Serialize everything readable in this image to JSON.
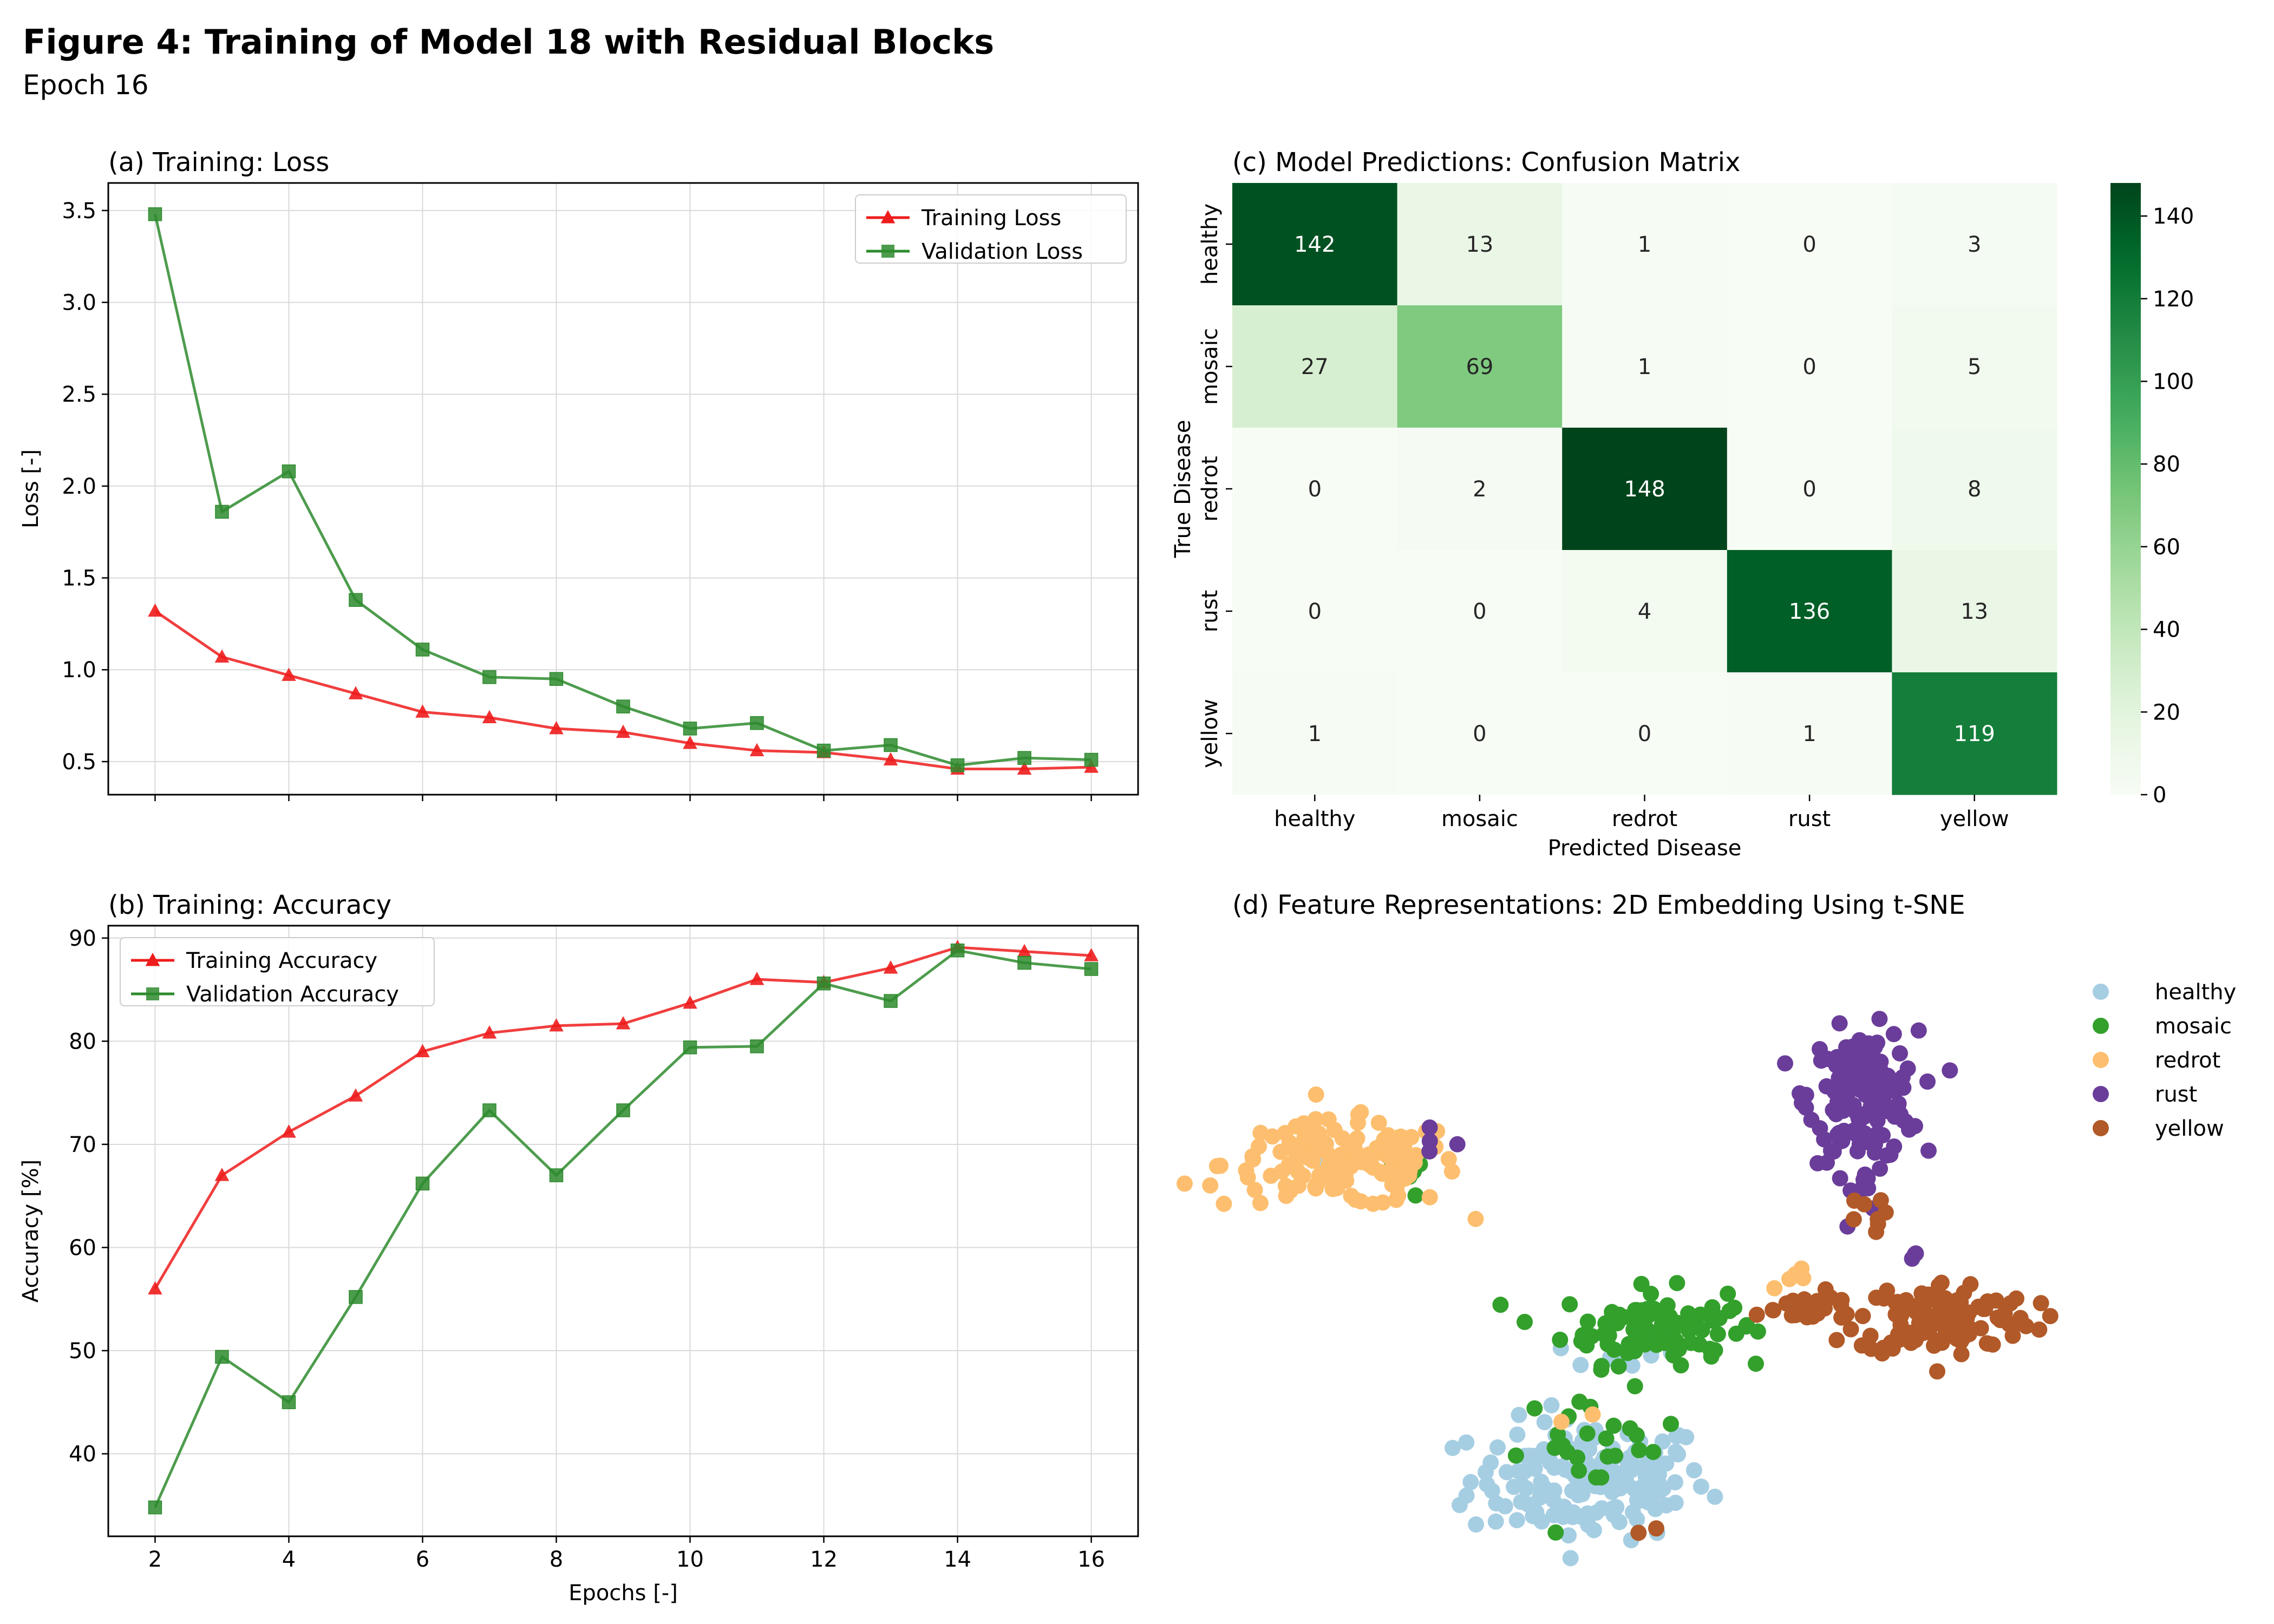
{
  "figure": {
    "title": "Figure 4: Training of Model 18 with Residual Blocks",
    "subtitle": "Epoch 16"
  },
  "colors": {
    "training": "#ee1c1c",
    "validation": "#2e8b2e",
    "healthy": "#a6cee3",
    "mosaic": "#33a02c",
    "redrot": "#fdbf6f",
    "rust": "#6a3d9a",
    "yellow": "#b15928"
  },
  "chart_data": [
    {
      "type": "line",
      "title": "(a) Training: Loss",
      "xlabel": "",
      "ylabel": "Loss [-]",
      "xlim": [
        1.3,
        16.7
      ],
      "ylim": [
        0.32,
        3.65
      ],
      "yticks": [
        0.5,
        1.0,
        1.5,
        2.0,
        2.5,
        3.0,
        3.5
      ],
      "ytick_labels": [
        "0.5",
        "1.0",
        "1.5",
        "2.0",
        "2.5",
        "3.0",
        "3.5"
      ],
      "xticks": [
        2,
        4,
        6,
        8,
        10,
        12,
        14,
        16
      ],
      "grid": true,
      "legend": "top-right",
      "x": [
        2,
        3,
        4,
        5,
        6,
        7,
        8,
        9,
        10,
        11,
        12,
        13,
        14,
        15,
        16
      ],
      "series": [
        {
          "name": "Training Loss",
          "marker": "triangle",
          "color_key": "training",
          "values": [
            1.32,
            1.07,
            0.97,
            0.87,
            0.77,
            0.74,
            0.68,
            0.66,
            0.6,
            0.56,
            0.55,
            0.51,
            0.46,
            0.46,
            0.47
          ]
        },
        {
          "name": "Validation Loss",
          "marker": "square",
          "color_key": "validation",
          "values": [
            3.48,
            1.86,
            2.08,
            1.38,
            1.11,
            0.96,
            0.95,
            0.8,
            0.68,
            0.71,
            0.56,
            0.59,
            0.48,
            0.52,
            0.51
          ]
        }
      ]
    },
    {
      "type": "line",
      "title": "(b) Training: Accuracy",
      "xlabel": "Epochs [-]",
      "ylabel": "Accuracy [%]",
      "xlim": [
        1.3,
        16.7
      ],
      "ylim": [
        32,
        91.2
      ],
      "yticks": [
        40,
        50,
        60,
        70,
        80,
        90
      ],
      "ytick_labels": [
        "40",
        "50",
        "60",
        "70",
        "80",
        "90"
      ],
      "xticks": [
        2,
        4,
        6,
        8,
        10,
        12,
        14,
        16
      ],
      "xtick_labels": [
        "2",
        "4",
        "6",
        "8",
        "10",
        "12",
        "14",
        "16"
      ],
      "grid": true,
      "legend": "top-left",
      "x": [
        2,
        3,
        4,
        5,
        6,
        7,
        8,
        9,
        10,
        11,
        12,
        13,
        14,
        15,
        16
      ],
      "series": [
        {
          "name": "Training Accuracy",
          "marker": "triangle",
          "color_key": "training",
          "values": [
            56.0,
            67.0,
            71.2,
            74.7,
            79.0,
            80.8,
            81.5,
            81.7,
            83.7,
            86.0,
            85.7,
            87.1,
            89.1,
            88.7,
            88.3
          ]
        },
        {
          "name": "Validation Accuracy",
          "marker": "square",
          "color_key": "validation",
          "values": [
            34.8,
            49.4,
            45.0,
            55.2,
            66.2,
            73.3,
            67.0,
            73.3,
            79.4,
            79.5,
            85.6,
            83.9,
            88.8,
            87.6,
            87.0
          ]
        }
      ]
    },
    {
      "type": "heatmap",
      "title": "(c) Model Predictions: Confusion Matrix",
      "xlabel": "Predicted Disease",
      "ylabel": "True Disease",
      "x_categories": [
        "healthy",
        "mosaic",
        "redrot",
        "rust",
        "yellow"
      ],
      "y_categories": [
        "healthy",
        "mosaic",
        "redrot",
        "rust",
        "yellow"
      ],
      "values": [
        [
          142,
          13,
          1,
          0,
          3
        ],
        [
          27,
          69,
          1,
          0,
          5
        ],
        [
          0,
          2,
          148,
          0,
          8
        ],
        [
          0,
          0,
          4,
          136,
          13
        ],
        [
          1,
          0,
          0,
          1,
          119
        ]
      ],
      "colormap": "Greens",
      "vmin": 0,
      "vmax": 148,
      "colorbar_ticks": [
        0,
        20,
        40,
        60,
        80,
        100,
        120,
        140
      ],
      "colorbar_tick_labels": [
        "0",
        "20",
        "40",
        "60",
        "80",
        "100",
        "120",
        "140"
      ]
    },
    {
      "type": "scatter",
      "title": "(d) Feature Representations: 2D Embedding Using t-SNE",
      "xlabel": "",
      "ylabel": "",
      "axes_visible": false,
      "legend": "top-right",
      "xlim": [
        -45,
        45
      ],
      "ylim": [
        -40,
        40
      ],
      "series": [
        {
          "name": "healthy",
          "color_key": "healthy",
          "clusters": [
            {
              "center": [
                -6,
                -25
              ],
              "spread": [
                6.5,
                3.5
              ],
              "count": 160
            },
            {
              "center": [
                -3,
                -10
              ],
              "spread": [
                3.5,
                1.2
              ],
              "count": 12
            },
            {
              "center": [
                -34,
                12
              ],
              "spread": [
                1.5,
                1
              ],
              "count": 2
            }
          ]
        },
        {
          "name": "mosaic",
          "color_key": "mosaic",
          "clusters": [
            {
              "center": [
                0,
                -7
              ],
              "spread": [
                4.5,
                2.2
              ],
              "count": 80
            },
            {
              "center": [
                -5,
                -21
              ],
              "spread": [
                4.5,
                3.0
              ],
              "count": 25
            },
            {
              "center": [
                -25,
                11
              ],
              "spread": [
                1.5,
                1.2
              ],
              "count": 5
            },
            {
              "center": [
                8,
                -7
              ],
              "spread": [
                2,
                1
              ],
              "count": 10
            }
          ]
        },
        {
          "name": "redrot",
          "color_key": "redrot",
          "clusters": [
            {
              "center": [
                -33,
                12
              ],
              "spread": [
                6.5,
                2.5
              ],
              "count": 150
            },
            {
              "center": [
                17,
                -1
              ],
              "spread": [
                1.2,
                0.6
              ],
              "count": 7
            },
            {
              "center": [
                -8,
                -18
              ],
              "spread": [
                1,
                1
              ],
              "count": 2
            }
          ]
        },
        {
          "name": "rust",
          "color_key": "rust",
          "clusters": [
            {
              "center": [
                24,
                20
              ],
              "spread": [
                3.0,
                3.8
              ],
              "count": 150
            },
            {
              "center": [
                24,
                9
              ],
              "spread": [
                1.5,
                1.2
              ],
              "count": 8
            },
            {
              "center": [
                -23,
                15
              ],
              "spread": [
                1.5,
                1.5
              ],
              "count": 4
            },
            {
              "center": [
                30,
                1
              ],
              "spread": [
                2,
                1
              ],
              "count": 3
            }
          ]
        },
        {
          "name": "yellow",
          "color_key": "yellow",
          "clusters": [
            {
              "center": [
                33,
                -6
              ],
              "spread": [
                4.8,
                2.2
              ],
              "count": 120
            },
            {
              "center": [
                17,
                -5
              ],
              "spread": [
                4.5,
                1.0
              ],
              "count": 20
            },
            {
              "center": [
                24,
                6
              ],
              "spread": [
                1.2,
                1.0
              ],
              "count": 8
            },
            {
              "center": [
                -1,
                -31
              ],
              "spread": [
                1,
                0.8
              ],
              "count": 2
            }
          ]
        }
      ]
    }
  ]
}
